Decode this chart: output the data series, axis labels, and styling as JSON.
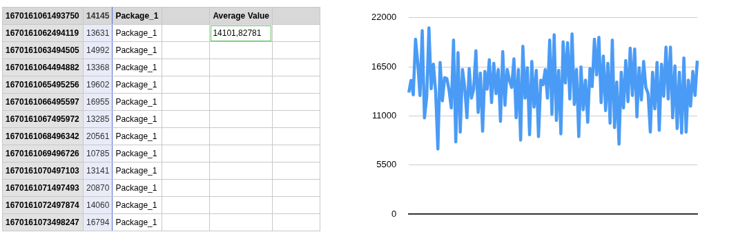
{
  "chart_data": [
    {
      "type": "other",
      "categories": [
        "1670161061493750",
        "1670161062494119",
        "1670161063494505",
        "1670161064494882",
        "1670161065495256",
        "1670161066495597",
        "1670161067495972",
        "1670161068496342",
        "1670161069496726",
        "1670161070497103",
        "1670161071497493",
        "1670161072497874",
        "1670161073498247"
      ],
      "values": [
        14145,
        13631,
        14992,
        13368,
        19602,
        16955,
        13285,
        20561,
        10785,
        13141,
        20870,
        14060,
        16794
      ],
      "y2_categories": [
        "Package_1",
        "Package_1",
        "Package_1",
        "Package_1",
        "Package_1",
        "Package_1",
        "Package_1",
        "Package_1",
        "Package_1",
        "Package_1",
        "Package_1",
        "Package_1",
        "Package_1"
      ],
      "annotations": [
        "Average Value",
        "14101,82781"
      ],
      "data_labels": true
    },
    {
      "type": "line",
      "categories": [
        null,
        null,
        null,
        null,
        null,
        null,
        null,
        null,
        null,
        null,
        null,
        null,
        null,
        null,
        null,
        null,
        null,
        null,
        null,
        null,
        null,
        null,
        null,
        null,
        null,
        null,
        null,
        null,
        null,
        null,
        null,
        null,
        null,
        null,
        null,
        null,
        null,
        null,
        null,
        null,
        null,
        null,
        null,
        null,
        null,
        null,
        null,
        null,
        null,
        null,
        null,
        null,
        null,
        null,
        null,
        null,
        null,
        null,
        null,
        null,
        null,
        null,
        null,
        null,
        null,
        null,
        null,
        null,
        null,
        null,
        null,
        null,
        null,
        null,
        null,
        null,
        null,
        null,
        null,
        null,
        null,
        null,
        null,
        null,
        null,
        null,
        null,
        null,
        null,
        null,
        null,
        null,
        null,
        null,
        null,
        null,
        null,
        null,
        null,
        null,
        null,
        null,
        null,
        null,
        null,
        null,
        null,
        null,
        null,
        null,
        null,
        null,
        null,
        null,
        null,
        null,
        null,
        null,
        null,
        null,
        null,
        null,
        null,
        null,
        null,
        null,
        null,
        null,
        null,
        null
      ],
      "series": [
        {
          "color": "#4a9bf5",
          "values": [
            13631,
            14992,
            13368,
            19602,
            16955,
            13285,
            20561,
            10785,
            13141,
            20870,
            14060,
            16794,
            13700,
            7300,
            17000,
            12700,
            15300,
            15200,
            13900,
            11900,
            19500,
            8100,
            18100,
            9200,
            16200,
            14200,
            10800,
            16300,
            13000,
            14000,
            18300,
            11400,
            15800,
            9300,
            16000,
            14000,
            17300,
            12500,
            16900,
            13500,
            16200,
            10400,
            18200,
            12200,
            16200,
            15000,
            14200,
            17400,
            10800,
            16200,
            8300,
            18800,
            13000,
            16400,
            8900,
            17100,
            12000,
            16100,
            8700,
            15000,
            14500,
            16200,
            13000,
            19500,
            11200,
            20100,
            10500,
            16100,
            9000,
            19300,
            14700,
            19200,
            12900,
            20200,
            12300,
            16200,
            8700,
            16500,
            11700,
            15000,
            10300,
            16300,
            14300,
            19600,
            15600,
            19800,
            12500,
            17700,
            11600,
            16900,
            10200,
            19500,
            9700,
            14800,
            7850,
            15900,
            11900,
            17200,
            12600,
            18600,
            13300,
            18500,
            10900,
            16400,
            12800,
            17100,
            14200,
            13500,
            9200,
            15900,
            11800,
            17000,
            9400,
            16800,
            13200,
            18700,
            12900,
            18700,
            10800,
            16600,
            9600,
            15900,
            9100,
            17500,
            9200,
            15000,
            12100,
            16000,
            13300,
            17200
          ]
        }
      ],
      "ylim": [
        0,
        22000
      ],
      "yticks": [
        0,
        5500,
        11000,
        16500,
        22000
      ],
      "grid": "y",
      "legend": false,
      "tick_labels": "y",
      "line_style": "solid",
      "marker": "none"
    }
  ]
}
